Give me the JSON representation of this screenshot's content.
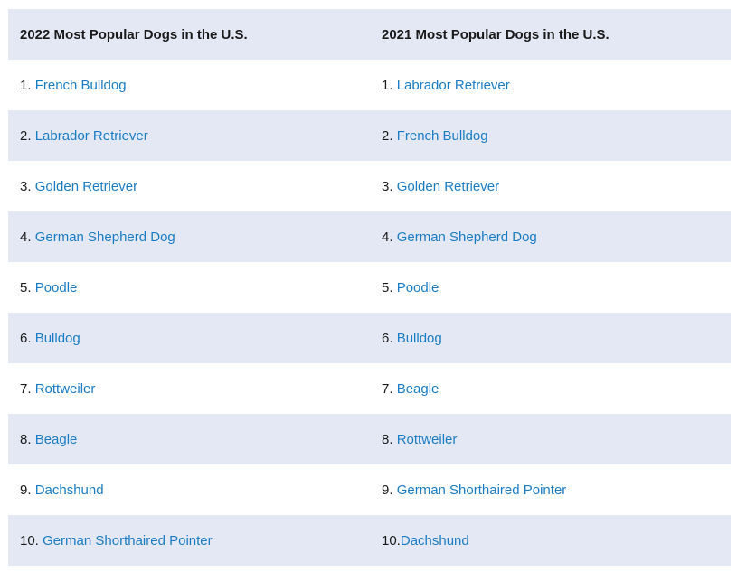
{
  "table": {
    "headers": [
      "2022 Most Popular Dogs in the U.S.",
      "2021 Most Popular Dogs in the U.S."
    ],
    "rows": [
      [
        {
          "num": "1. ",
          "name": "French Bulldog"
        },
        {
          "num": "1. ",
          "name": "Labrador Retriever"
        }
      ],
      [
        {
          "num": "2. ",
          "name": "Labrador Retriever"
        },
        {
          "num": "2. ",
          "name": "French Bulldog"
        }
      ],
      [
        {
          "num": "3. ",
          "name": "Golden Retriever"
        },
        {
          "num": "3. ",
          "name": "Golden Retriever"
        }
      ],
      [
        {
          "num": "4. ",
          "name": "German Shepherd Dog"
        },
        {
          "num": "4. ",
          "name": "German Shepherd Dog"
        }
      ],
      [
        {
          "num": "5. ",
          "name": "Poodle"
        },
        {
          "num": "5. ",
          "name": "Poodle"
        }
      ],
      [
        {
          "num": "6. ",
          "name": "Bulldog"
        },
        {
          "num": "6. ",
          "name": "Bulldog"
        }
      ],
      [
        {
          "num": "7. ",
          "name": "Rottweiler"
        },
        {
          "num": "7. ",
          "name": "Beagle"
        }
      ],
      [
        {
          "num": "8. ",
          "name": "Beagle"
        },
        {
          "num": "8. ",
          "name": "Rottweiler"
        }
      ],
      [
        {
          "num": "9. ",
          "name": "Dachshund"
        },
        {
          "num": "9. ",
          "name": "German Shorthaired Pointer"
        }
      ],
      [
        {
          "num": "10. ",
          "name": "German Shorthaired Pointer"
        },
        {
          "num": "10.",
          "name": "Dachshund"
        }
      ]
    ]
  },
  "colors": {
    "header_bg": "#e4e8f4",
    "stripe_bg": "#e4e8f4",
    "link": "#1a7cc4",
    "text": "#1a1a1a"
  }
}
